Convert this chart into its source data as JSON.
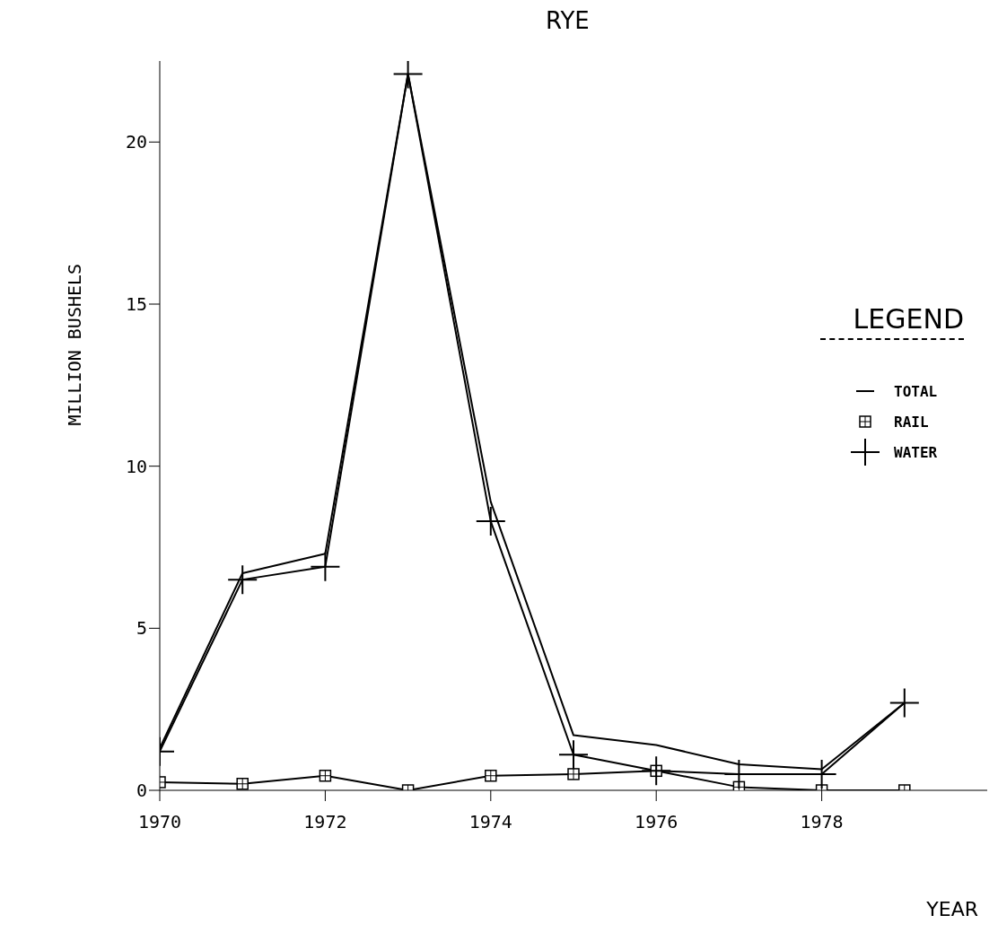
{
  "chart_data": {
    "type": "line",
    "title": "RYE",
    "xlabel": "YEAR",
    "ylabel": "MILLION BUSHELS",
    "legend_title": "LEGEND",
    "x": [
      1970,
      1971,
      1972,
      1973,
      1974,
      1975,
      1976,
      1977,
      1978,
      1979
    ],
    "series": [
      {
        "name": "TOTAL",
        "color": "#000000",
        "marker": "none",
        "values": [
          1.3,
          6.7,
          7.3,
          22.1,
          8.9,
          1.7,
          1.4,
          0.8,
          0.65,
          2.7
        ]
      },
      {
        "name": "RAIL",
        "color": "#000000",
        "marker": "square",
        "values": [
          0.25,
          0.2,
          0.45,
          0.0,
          0.45,
          0.5,
          0.6,
          0.1,
          0.0,
          0.0
        ]
      },
      {
        "name": "WATER",
        "color": "#000000",
        "marker": "cross",
        "values": [
          1.2,
          6.5,
          6.9,
          22.1,
          8.3,
          1.1,
          0.6,
          0.5,
          0.5,
          2.7
        ]
      }
    ],
    "xlim": [
      1970,
      1980
    ],
    "xticks": [
      1970,
      1972,
      1974,
      1976,
      1978
    ],
    "ylim": [
      0,
      22.5
    ],
    "yticks": [
      0,
      5,
      10,
      15,
      20
    ],
    "grid": false,
    "legend": "right",
    "line_style": "solid"
  }
}
